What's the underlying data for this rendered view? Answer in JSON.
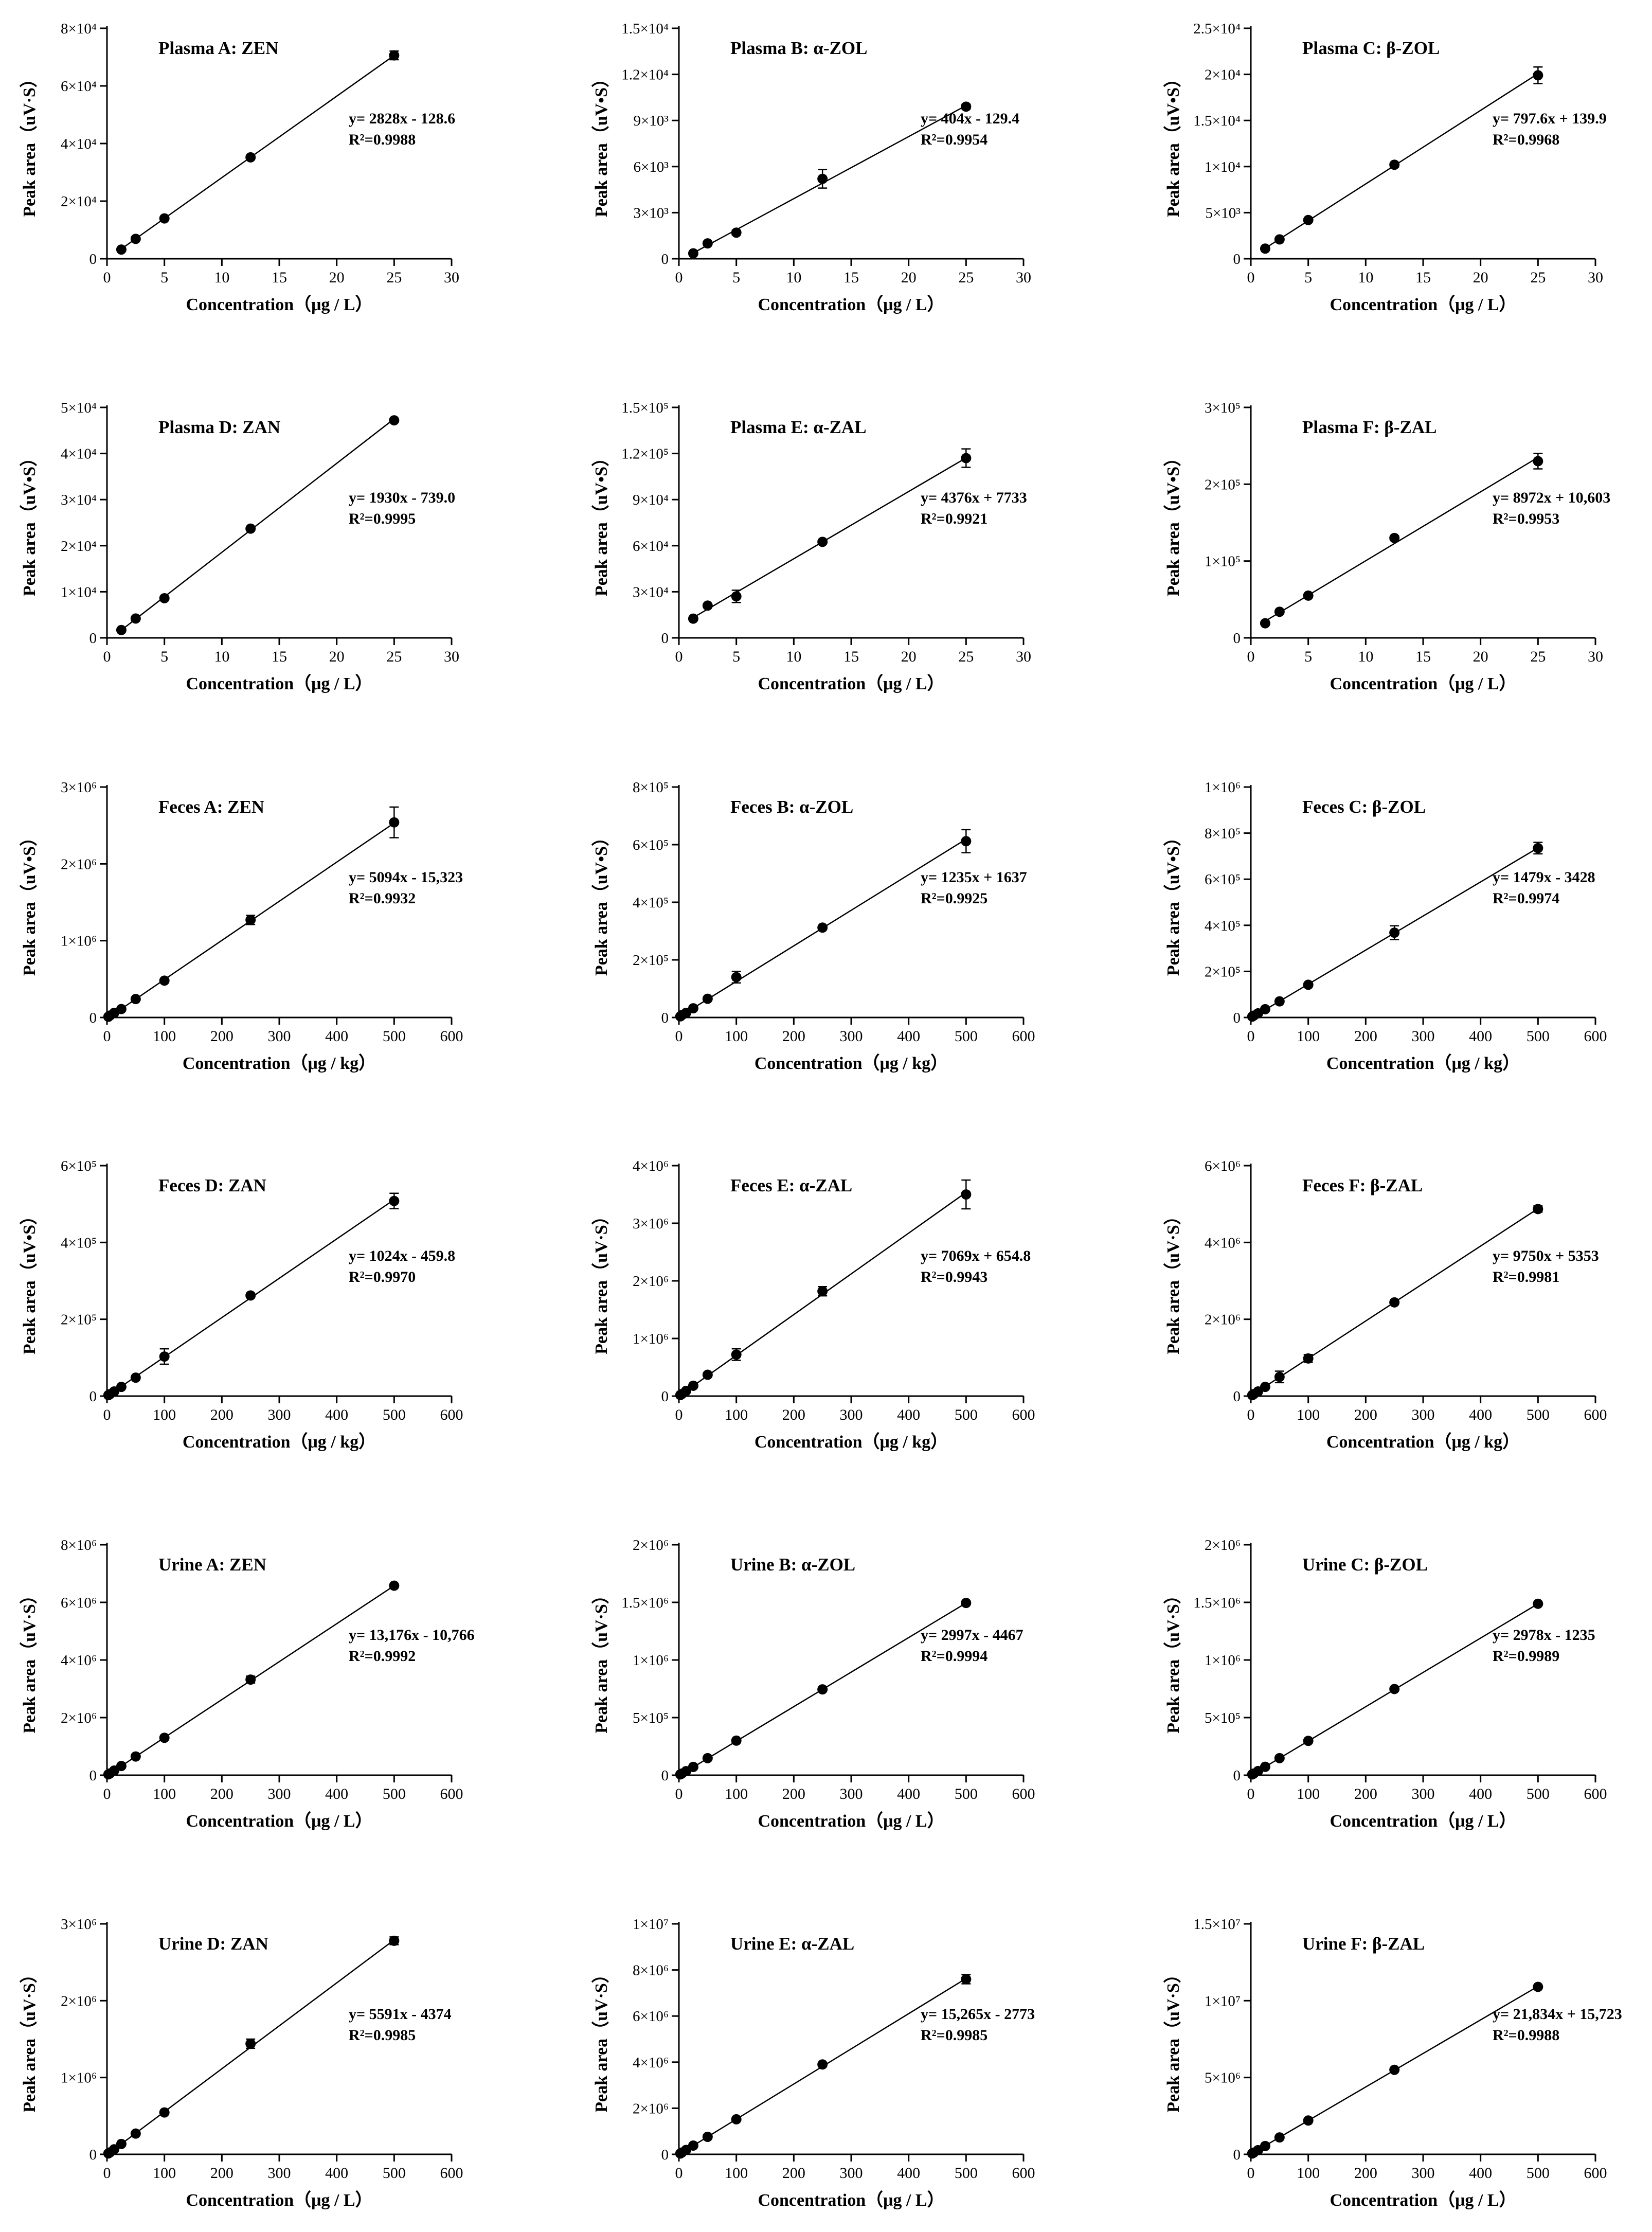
{
  "figure": {
    "background": "#ffffff",
    "line_color": "#000000",
    "marker_color": "#000000"
  },
  "chart_data": [
    {
      "type": "scatter",
      "title": "Plasma A: ZEN",
      "xlabel": "Concentration（μg / L）",
      "ylabel": "Peak area（uV·S）",
      "xlim": [
        0,
        30
      ],
      "xticks": [
        "0",
        "5",
        "10",
        "15",
        "20",
        "25",
        "30"
      ],
      "ylim": [
        0,
        80000
      ],
      "yticks": [
        "0",
        "2×10⁴",
        "4×10⁴",
        "6×10⁴",
        "8×10⁴"
      ],
      "x": [
        1.25,
        2.5,
        5,
        12.5,
        25
      ],
      "y": [
        3200,
        6900,
        14000,
        35200,
        70600
      ],
      "err": [
        0,
        300,
        500,
        600,
        1500
      ],
      "fit": {
        "slope": 2828,
        "intercept": -128.6,
        "equation": "y= 2828x - 128.6",
        "r2_label": "R²=0.9988"
      }
    },
    {
      "type": "scatter",
      "title": "Plasma B: α-ZOL",
      "xlabel": "Concentration（μg / L）",
      "ylabel": "Peak area（uV•S）",
      "xlim": [
        0,
        30
      ],
      "xticks": [
        "0",
        "5",
        "10",
        "15",
        "20",
        "25",
        "30"
      ],
      "ylim": [
        0,
        15000
      ],
      "yticks": [
        "0",
        "3×10³",
        "6×10³",
        "9×10³",
        "1.2×10⁴",
        "1.5×10⁴"
      ],
      "x": [
        1.25,
        2.5,
        5,
        12.5,
        25
      ],
      "y": [
        350,
        1000,
        1700,
        5200,
        9900
      ],
      "err": [
        0,
        100,
        150,
        600,
        150
      ],
      "fit": {
        "slope": 404,
        "intercept": -129.4,
        "equation": "y= 404x - 129.4",
        "r2_label": "R²=0.9954"
      }
    },
    {
      "type": "scatter",
      "title": "Plasma C: β-ZOL",
      "xlabel": "Concentration（μg / L）",
      "ylabel": "Peak area（uV•S）",
      "xlim": [
        0,
        30
      ],
      "xticks": [
        "0",
        "5",
        "10",
        "15",
        "20",
        "25",
        "30"
      ],
      "ylim": [
        0,
        25000
      ],
      "yticks": [
        "0",
        "5×10³",
        "1×10⁴",
        "1.5×10⁴",
        "2×10⁴",
        "2.5×10⁴"
      ],
      "x": [
        1.25,
        2.5,
        5,
        12.5,
        25
      ],
      "y": [
        1100,
        2100,
        4200,
        10200,
        19900
      ],
      "err": [
        0,
        100,
        150,
        250,
        900
      ],
      "fit": {
        "slope": 797.6,
        "intercept": 139.9,
        "equation": "y= 797.6x + 139.9",
        "r2_label": "R²=0.9968"
      }
    },
    {
      "type": "scatter",
      "title": "Plasma D: ZAN",
      "xlabel": "Concentration（μg / L）",
      "ylabel": "Peak area（uV•S）",
      "xlim": [
        0,
        30
      ],
      "xticks": [
        "0",
        "5",
        "10",
        "15",
        "20",
        "25",
        "30"
      ],
      "ylim": [
        0,
        50000
      ],
      "yticks": [
        "0",
        "1×10⁴",
        "2×10⁴",
        "3×10⁴",
        "4×10⁴",
        "5×10⁴"
      ],
      "x": [
        1.25,
        2.5,
        5,
        12.5,
        25
      ],
      "y": [
        1700,
        4200,
        8600,
        23700,
        47200
      ],
      "err": [
        0,
        200,
        300,
        400,
        400
      ],
      "fit": {
        "slope": 1930,
        "intercept": -739.0,
        "equation": "y= 1930x - 739.0",
        "r2_label": "R²=0.9995"
      }
    },
    {
      "type": "scatter",
      "title": "Plasma E: α-ZAL",
      "xlabel": "Concentration（μg / L）",
      "ylabel": "Peak area（uV•S）",
      "xlim": [
        0,
        30
      ],
      "xticks": [
        "0",
        "5",
        "10",
        "15",
        "20",
        "25",
        "30"
      ],
      "ylim": [
        0,
        150000
      ],
      "yticks": [
        "0",
        "3×10⁴",
        "6×10⁴",
        "9×10⁴",
        "1.2×10⁵",
        "1.5×10⁵"
      ],
      "x": [
        1.25,
        2.5,
        5,
        12.5,
        25
      ],
      "y": [
        12500,
        21000,
        27000,
        62500,
        117000
      ],
      "err": [
        0,
        1000,
        4000,
        1000,
        6000
      ],
      "fit": {
        "slope": 4376,
        "intercept": 7733,
        "equation": "y= 4376x + 7733",
        "r2_label": "R²=0.9921"
      }
    },
    {
      "type": "scatter",
      "title": "Plasma F: β-ZAL",
      "xlabel": "Concentration（μg / L）",
      "ylabel": "Peak area（uV•S）",
      "xlim": [
        0,
        30
      ],
      "xticks": [
        "0",
        "5",
        "10",
        "15",
        "20",
        "25",
        "30"
      ],
      "ylim": [
        0,
        300000
      ],
      "yticks": [
        "0",
        "1×10⁵",
        "2×10⁵",
        "3×10⁵"
      ],
      "x": [
        1.25,
        2.5,
        5,
        12.5,
        25
      ],
      "y": [
        19000,
        34000,
        55000,
        130000,
        230000
      ],
      "err": [
        0,
        1500,
        2000,
        3000,
        10000
      ],
      "fit": {
        "slope": 8972,
        "intercept": 10603,
        "equation": "y= 8972x + 10,603",
        "r2_label": "R²=0.9953"
      }
    },
    {
      "type": "scatter",
      "title": "Feces A: ZEN",
      "xlabel": "Concentration（μg / kg）",
      "ylabel": "Peak area（uV•S）",
      "xlim": [
        0,
        600
      ],
      "xticks": [
        "0",
        "100",
        "200",
        "300",
        "400",
        "500",
        "600"
      ],
      "ylim": [
        0,
        3000000
      ],
      "yticks": [
        "0",
        "1×10⁶",
        "2×10⁶",
        "3×10⁶"
      ],
      "x": [
        2.5,
        5,
        12.5,
        25,
        50,
        100,
        250,
        500
      ],
      "y": [
        10000,
        25000,
        60000,
        110000,
        240000,
        480000,
        1270000,
        2540000
      ],
      "err": [
        0,
        0,
        0,
        0,
        10000,
        15000,
        60000,
        200000
      ],
      "fit": {
        "slope": 5094,
        "intercept": -15323,
        "equation": "y= 5094x - 15,323",
        "r2_label": "R²=0.9932"
      }
    },
    {
      "type": "scatter",
      "title": "Feces B: α-ZOL",
      "xlabel": "Concentration（μg / kg）",
      "ylabel": "Peak area（uV•S）",
      "xlim": [
        0,
        600
      ],
      "xticks": [
        "0",
        "100",
        "200",
        "300",
        "400",
        "500",
        "600"
      ],
      "ylim": [
        0,
        800000
      ],
      "yticks": [
        "0",
        "2×10⁵",
        "4×10⁵",
        "6×10⁵",
        "8×10⁵"
      ],
      "x": [
        2.5,
        5,
        12.5,
        25,
        50,
        100,
        250,
        500
      ],
      "y": [
        4000,
        8000,
        16000,
        32000,
        65000,
        140000,
        312000,
        612000
      ],
      "err": [
        0,
        0,
        0,
        0,
        3000,
        20000,
        5000,
        40000
      ],
      "fit": {
        "slope": 1235,
        "intercept": 1637,
        "equation": "y= 1235x + 1637",
        "r2_label": "R²=0.9925"
      }
    },
    {
      "type": "scatter",
      "title": "Feces C: β-ZOL",
      "xlabel": "Concentration（μg / kg）",
      "ylabel": "Peak area（uV•S）",
      "xlim": [
        0,
        600
      ],
      "xticks": [
        "0",
        "100",
        "200",
        "300",
        "400",
        "500",
        "600"
      ],
      "ylim": [
        0,
        1000000
      ],
      "yticks": [
        "0",
        "2×10⁵",
        "4×10⁵",
        "6×10⁵",
        "8×10⁵",
        "1×10⁶"
      ],
      "x": [
        2.5,
        5,
        12.5,
        25,
        50,
        100,
        250,
        500
      ],
      "y": [
        4000,
        8000,
        18000,
        36000,
        70000,
        142000,
        368000,
        735000
      ],
      "err": [
        0,
        0,
        0,
        0,
        3000,
        5000,
        30000,
        25000
      ],
      "fit": {
        "slope": 1479,
        "intercept": -3428,
        "equation": "y= 1479x - 3428",
        "r2_label": "R²=0.9974"
      }
    },
    {
      "type": "scatter",
      "title": "Feces D: ZAN",
      "xlabel": "Concentration（μg / kg）",
      "ylabel": "Peak area（uV•S）",
      "xlim": [
        0,
        600
      ],
      "xticks": [
        "0",
        "100",
        "200",
        "300",
        "400",
        "500",
        "600"
      ],
      "ylim": [
        0,
        600000
      ],
      "yticks": [
        "0",
        "2×10⁵",
        "4×10⁵",
        "6×10⁵"
      ],
      "x": [
        2.5,
        5,
        12.5,
        25,
        50,
        100,
        250,
        500
      ],
      "y": [
        2500,
        5000,
        12000,
        24000,
        48000,
        103000,
        262000,
        508000
      ],
      "err": [
        0,
        0,
        0,
        0,
        3000,
        20000,
        4000,
        20000
      ],
      "fit": {
        "slope": 1024,
        "intercept": -459.8,
        "equation": "y= 1024x - 459.8",
        "r2_label": "R²=0.9970"
      }
    },
    {
      "type": "scatter",
      "title": "Feces E: α-ZAL",
      "xlabel": "Concentration（μg / kg）",
      "ylabel": "Peak area（uV·S）",
      "xlim": [
        0,
        600
      ],
      "xticks": [
        "0",
        "100",
        "200",
        "300",
        "400",
        "500",
        "600"
      ],
      "ylim": [
        0,
        4000000
      ],
      "yticks": [
        "0",
        "1×10⁶",
        "2×10⁶",
        "3×10⁶",
        "4×10⁶"
      ],
      "x": [
        2.5,
        5,
        12.5,
        25,
        50,
        100,
        250,
        500
      ],
      "y": [
        18000,
        35000,
        90000,
        180000,
        370000,
        720000,
        1820000,
        3500000
      ],
      "err": [
        0,
        0,
        0,
        0,
        20000,
        100000,
        80000,
        250000
      ],
      "fit": {
        "slope": 7069,
        "intercept": 654.8,
        "equation": "y= 7069x + 654.8",
        "r2_label": "R²=0.9943"
      }
    },
    {
      "type": "scatter",
      "title": "Feces F: β-ZAL",
      "xlabel": "Concentration（μg / kg）",
      "ylabel": "Peak area（uV·S）",
      "xlim": [
        0,
        600
      ],
      "xticks": [
        "0",
        "100",
        "200",
        "300",
        "400",
        "500",
        "600"
      ],
      "ylim": [
        0,
        6000000
      ],
      "yticks": [
        "0",
        "2×10⁶",
        "4×10⁶",
        "6×10⁶"
      ],
      "x": [
        2.5,
        5,
        12.5,
        25,
        50,
        100,
        250,
        500
      ],
      "y": [
        25000,
        50000,
        120000,
        240000,
        500000,
        980000,
        2440000,
        4870000
      ],
      "err": [
        0,
        0,
        0,
        0,
        150000,
        100000,
        30000,
        80000
      ],
      "fit": {
        "slope": 9750,
        "intercept": 5353,
        "equation": "y= 9750x + 5353",
        "r2_label": "R²=0.9981"
      }
    },
    {
      "type": "scatter",
      "title": "Urine A: ZEN",
      "xlabel": "Concentration（μg / L）",
      "ylabel": "Peak area（uV·S）",
      "xlim": [
        0,
        600
      ],
      "xticks": [
        "0",
        "100",
        "200",
        "300",
        "400",
        "500",
        "600"
      ],
      "ylim": [
        0,
        8000000
      ],
      "yticks": [
        "0",
        "2×10⁶",
        "4×10⁶",
        "6×10⁶",
        "8×10⁶"
      ],
      "x": [
        2.5,
        5,
        12.5,
        25,
        50,
        100,
        250,
        500
      ],
      "y": [
        30000,
        60000,
        160000,
        320000,
        650000,
        1300000,
        3320000,
        6580000
      ],
      "err": [
        0,
        0,
        0,
        0,
        0,
        0,
        120000,
        0
      ],
      "fit": {
        "slope": 13176,
        "intercept": -10766,
        "equation": "y= 13,176x - 10,766",
        "r2_label": "R²=0.9992"
      }
    },
    {
      "type": "scatter",
      "title": "Urine B: α-ZOL",
      "xlabel": "Concentration（μg / L）",
      "ylabel": "Peak area（uV·S）",
      "xlim": [
        0,
        600
      ],
      "xticks": [
        "0",
        "100",
        "200",
        "300",
        "400",
        "500",
        "600"
      ],
      "ylim": [
        0,
        2000000
      ],
      "yticks": [
        "0",
        "5×10⁵",
        "1×10⁶",
        "1.5×10⁶",
        "2×10⁶"
      ],
      "x": [
        2.5,
        5,
        12.5,
        25,
        50,
        100,
        250,
        500
      ],
      "y": [
        7000,
        14000,
        35000,
        72000,
        148000,
        300000,
        745000,
        1495000
      ],
      "err": [
        0,
        0,
        0,
        0,
        0,
        0,
        0,
        0
      ],
      "fit": {
        "slope": 2997,
        "intercept": -4467,
        "equation": "y= 2997x - 4467",
        "r2_label": "R²=0.9994"
      }
    },
    {
      "type": "scatter",
      "title": "Urine C: β-ZOL",
      "xlabel": "Concentration（μg / L）",
      "ylabel": "Peak area（uV·S）",
      "xlim": [
        0,
        600
      ],
      "xticks": [
        "0",
        "100",
        "200",
        "300",
        "400",
        "500",
        "600"
      ],
      "ylim": [
        0,
        2000000
      ],
      "yticks": [
        "0",
        "5×10⁵",
        "1×10⁶",
        "1.5×10⁶",
        "2×10⁶"
      ],
      "x": [
        2.5,
        5,
        12.5,
        25,
        50,
        100,
        250,
        500
      ],
      "y": [
        7000,
        14000,
        36000,
        73000,
        148000,
        298000,
        748000,
        1488000
      ],
      "err": [
        0,
        0,
        0,
        0,
        0,
        0,
        0,
        0
      ],
      "fit": {
        "slope": 2978,
        "intercept": -1235,
        "equation": "y= 2978x - 1235",
        "r2_label": "R²=0.9989"
      }
    },
    {
      "type": "scatter",
      "title": "Urine D: ZAN",
      "xlabel": "Concentration（μg / L）",
      "ylabel": "Peak area（uV·S）",
      "xlim": [
        0,
        600
      ],
      "xticks": [
        "0",
        "100",
        "200",
        "300",
        "400",
        "500",
        "600"
      ],
      "ylim": [
        0,
        3000000
      ],
      "yticks": [
        "0",
        "1×10⁶",
        "2×10⁶",
        "3×10⁶"
      ],
      "x": [
        2.5,
        5,
        12.5,
        25,
        50,
        100,
        250,
        500
      ],
      "y": [
        12000,
        25000,
        65000,
        135000,
        270000,
        545000,
        1440000,
        2780000
      ],
      "err": [
        0,
        0,
        0,
        0,
        0,
        0,
        60000,
        50000
      ],
      "fit": {
        "slope": 5591,
        "intercept": -4374,
        "equation": "y= 5591x - 4374",
        "r2_label": "R²=0.9985"
      }
    },
    {
      "type": "scatter",
      "title": "Urine E: α-ZAL",
      "xlabel": "Concentration（μg / L）",
      "ylabel": "Peak area（uV·S）",
      "xlim": [
        0,
        600
      ],
      "xticks": [
        "0",
        "100",
        "200",
        "300",
        "400",
        "500",
        "600"
      ],
      "ylim": [
        0,
        10000000
      ],
      "yticks": [
        "0",
        "2×10⁶",
        "4×10⁶",
        "6×10⁶",
        "8×10⁶",
        "1×10⁷"
      ],
      "x": [
        2.5,
        5,
        12.5,
        25,
        50,
        100,
        250,
        500
      ],
      "y": [
        35000,
        75000,
        190000,
        380000,
        760000,
        1520000,
        3900000,
        7600000
      ],
      "err": [
        0,
        0,
        0,
        0,
        0,
        0,
        0,
        200000
      ],
      "fit": {
        "slope": 15265,
        "intercept": -2773,
        "equation": "y= 15,265x - 2773",
        "r2_label": "R²=0.9985"
      }
    },
    {
      "type": "scatter",
      "title": "Urine F: β-ZAL",
      "xlabel": "Concentration（μg / L）",
      "ylabel": "Peak area（uV·S）",
      "xlim": [
        0,
        600
      ],
      "xticks": [
        "0",
        "100",
        "200",
        "300",
        "400",
        "500",
        "600"
      ],
      "ylim": [
        0,
        15000000
      ],
      "yticks": [
        "0",
        "5×10⁶",
        "1×10⁷",
        "1.5×10⁷"
      ],
      "x": [
        2.5,
        5,
        12.5,
        25,
        50,
        100,
        250,
        500
      ],
      "y": [
        55000,
        110000,
        270000,
        540000,
        1100000,
        2200000,
        5500000,
        10900000
      ],
      "err": [
        0,
        0,
        0,
        0,
        0,
        0,
        0,
        0
      ],
      "fit": {
        "slope": 21834,
        "intercept": 15723,
        "equation": "y= 21,834x + 15,723",
        "r2_label": "R²=0.9988"
      }
    }
  ]
}
